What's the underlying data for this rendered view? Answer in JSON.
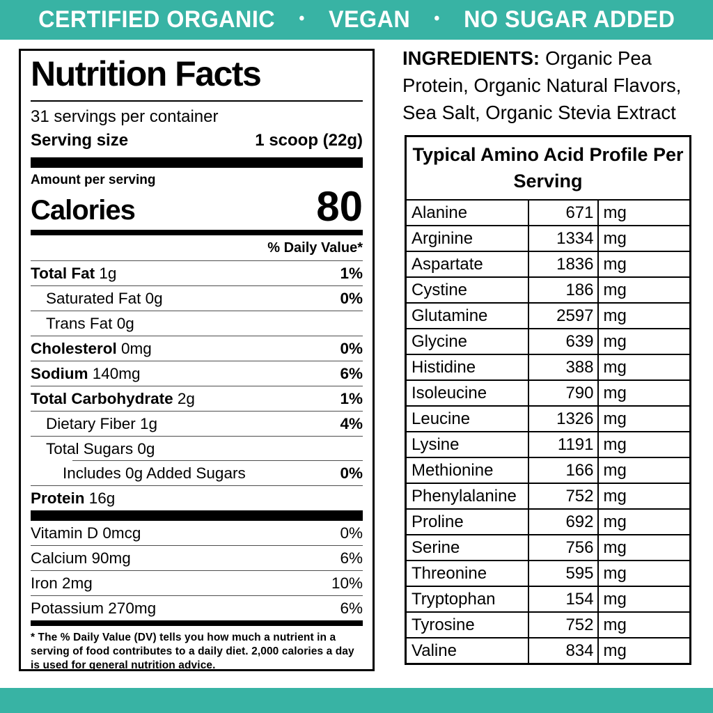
{
  "colors": {
    "teal": "#38b3a4",
    "text": "#000000",
    "background": "#ffffff"
  },
  "banner": {
    "bullet": "•",
    "items": [
      "CERTIFIED ORGANIC",
      "VEGAN",
      "NO SUGAR ADDED"
    ]
  },
  "nutrition": {
    "title": "Nutrition Facts",
    "servings": "31 servings per container",
    "serving_size_label": "Serving size",
    "serving_size_value": "1 scoop (22g)",
    "amount_per_serving": "Amount per serving",
    "calories_label": "Calories",
    "calories_value": "80",
    "daily_value_header": "% Daily Value*",
    "rows": [
      {
        "name": "Total Fat",
        "amount": "1g",
        "dv": "1%",
        "bold": true,
        "indent": 0,
        "sep": "full"
      },
      {
        "name": "Saturated Fat",
        "amount": "0g",
        "dv": "0%",
        "bold": false,
        "indent": 1,
        "sep": "full"
      },
      {
        "name": "Trans Fat",
        "amount": "0g",
        "dv": "",
        "bold": false,
        "indent": 1,
        "sep": "full"
      },
      {
        "name": "Cholesterol",
        "amount": "0mg",
        "dv": "0%",
        "bold": true,
        "indent": 0,
        "sep": "full"
      },
      {
        "name": "Sodium",
        "amount": "140mg",
        "dv": "6%",
        "bold": true,
        "indent": 0,
        "sep": "full"
      },
      {
        "name": "Total Carbohydrate",
        "amount": "2g",
        "dv": "1%",
        "bold": true,
        "indent": 0,
        "sep": "full"
      },
      {
        "name": "Dietary Fiber",
        "amount": "1g",
        "dv": "4%",
        "bold": false,
        "indent": 1,
        "sep": "full"
      },
      {
        "name": "Total Sugars",
        "amount": "0g",
        "dv": "",
        "bold": false,
        "indent": 1,
        "sep": "partial"
      },
      {
        "name": "Includes 0g Added Sugars",
        "amount": "",
        "dv": "0%",
        "bold": false,
        "indent": 2,
        "sep": "full"
      },
      {
        "name": "Protein",
        "amount": "16g",
        "dv": "",
        "bold": true,
        "indent": 0,
        "sep": "none"
      }
    ],
    "vitamin_rows": [
      {
        "name": "Vitamin D",
        "amount": "0mcg",
        "dv": "0%"
      },
      {
        "name": "Calcium",
        "amount": "90mg",
        "dv": "6%"
      },
      {
        "name": "Iron",
        "amount": "2mg",
        "dv": "10%"
      },
      {
        "name": "Potassium",
        "amount": "270mg",
        "dv": "6%"
      }
    ],
    "footnote": "* The % Daily Value (DV) tells you how much a nutrient in a serving of food contributes to a daily diet. 2,000 calories a day is used for general nutrition advice."
  },
  "ingredients": {
    "label": "INGREDIENTS:",
    "text": "Organic Pea Protein, Organic Natural Flavors, Sea Salt, Organic Stevia Extract"
  },
  "amino": {
    "title": "Typical Amino Acid Profile Per Serving",
    "unit": "mg",
    "rows": [
      {
        "name": "Alanine",
        "value": "671"
      },
      {
        "name": "Arginine",
        "value": "1334"
      },
      {
        "name": "Aspartate",
        "value": "1836"
      },
      {
        "name": "Cystine",
        "value": "186"
      },
      {
        "name": "Glutamine",
        "value": "2597"
      },
      {
        "name": "Glycine",
        "value": "639"
      },
      {
        "name": "Histidine",
        "value": "388"
      },
      {
        "name": "Isoleucine",
        "value": "790"
      },
      {
        "name": "Leucine",
        "value": "1326"
      },
      {
        "name": "Lysine",
        "value": "1191"
      },
      {
        "name": "Methionine",
        "value": "166"
      },
      {
        "name": "Phenylalanine",
        "value": "752"
      },
      {
        "name": "Proline",
        "value": "692"
      },
      {
        "name": "Serine",
        "value": "756"
      },
      {
        "name": "Threonine",
        "value": "595"
      },
      {
        "name": "Tryptophan",
        "value": "154"
      },
      {
        "name": "Tyrosine",
        "value": "752"
      },
      {
        "name": "Valine",
        "value": "834"
      }
    ]
  }
}
